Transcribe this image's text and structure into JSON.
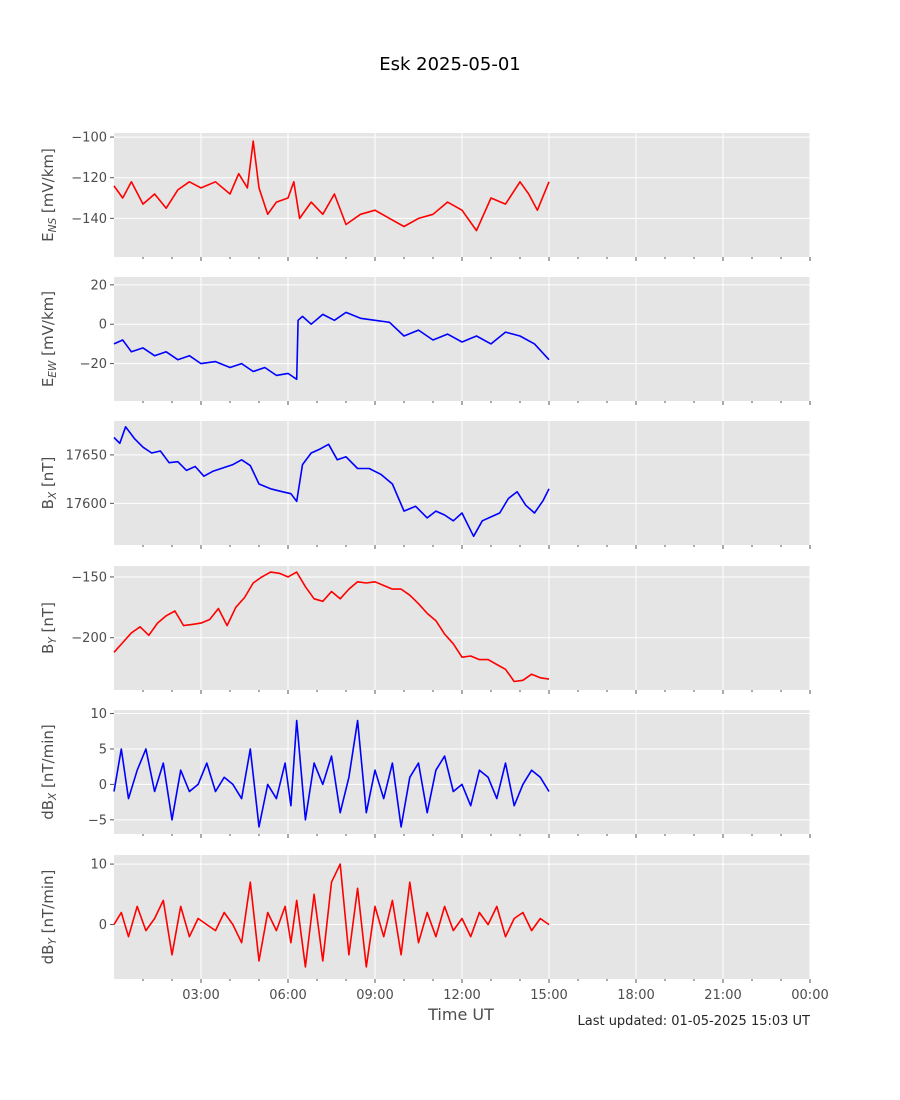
{
  "figure": {
    "title": "Esk 2025-05-01",
    "xlabel": "Time UT",
    "footnote": "Last updated: 01-05-2025 15:03 UT",
    "background": "#e5e5e5",
    "grid_color": "#ffffff",
    "text_color": "#4d4d4d"
  },
  "chart_data": [
    {
      "type": "line",
      "ylabel_main": "E",
      "ylabel_sub": "NS",
      "ylabel_unit": " [mV/km]",
      "color": "#ff0000",
      "x_range_hours": [
        0,
        24
      ],
      "x_ticks": [
        "03:00",
        "06:00",
        "09:00",
        "12:00",
        "15:00",
        "18:00",
        "21:00",
        "00:00"
      ],
      "y_ticks": [
        {
          "v": -100,
          "label": "−100"
        },
        {
          "v": -120,
          "label": "−120"
        },
        {
          "v": -140,
          "label": "−140"
        }
      ],
      "ylim": [
        -159,
        -98
      ],
      "grid": true,
      "series": [
        {
          "x": [
            0,
            0.3,
            0.6,
            1.0,
            1.4,
            1.8,
            2.2,
            2.6,
            3.0,
            3.5,
            4.0,
            4.3,
            4.6,
            4.8,
            5.0,
            5.3,
            5.6,
            6.0,
            6.2,
            6.4,
            6.8,
            7.2,
            7.6,
            8.0,
            8.5,
            9.0,
            9.5,
            10.0,
            10.5,
            11.0,
            11.5,
            12.0,
            12.5,
            13.0,
            13.5,
            14.0,
            14.3,
            14.6,
            15.0
          ],
          "y": [
            -124,
            -130,
            -122,
            -133,
            -128,
            -135,
            -126,
            -122,
            -125,
            -122,
            -128,
            -118,
            -125,
            -102,
            -125,
            -138,
            -132,
            -130,
            -122,
            -140,
            -132,
            -138,
            -128,
            -143,
            -138,
            -136,
            -140,
            -144,
            -140,
            -138,
            -132,
            -136,
            -146,
            -130,
            -133,
            -122,
            -128,
            -136,
            -122
          ]
        }
      ]
    },
    {
      "type": "line",
      "ylabel_main": "E",
      "ylabel_sub": "EW",
      "ylabel_unit": " [mV/km]",
      "color": "#0000ff",
      "x_range_hours": [
        0,
        24
      ],
      "x_ticks": [
        "03:00",
        "06:00",
        "09:00",
        "12:00",
        "15:00",
        "18:00",
        "21:00",
        "00:00"
      ],
      "y_ticks": [
        {
          "v": 20,
          "label": "20"
        },
        {
          "v": 0,
          "label": "0"
        },
        {
          "v": -20,
          "label": "−20"
        }
      ],
      "ylim": [
        -39,
        24
      ],
      "grid": true,
      "series": [
        {
          "x": [
            0,
            0.3,
            0.6,
            1.0,
            1.4,
            1.8,
            2.2,
            2.6,
            3.0,
            3.5,
            4.0,
            4.4,
            4.8,
            5.2,
            5.6,
            6.0,
            6.3,
            6.35,
            6.5,
            6.8,
            7.2,
            7.6,
            8.0,
            8.5,
            9.0,
            9.5,
            10.0,
            10.5,
            11.0,
            11.5,
            12.0,
            12.5,
            13.0,
            13.5,
            14.0,
            14.5,
            15.0
          ],
          "y": [
            -10,
            -8,
            -14,
            -12,
            -16,
            -14,
            -18,
            -16,
            -20,
            -19,
            -22,
            -20,
            -24,
            -22,
            -26,
            -25,
            -28,
            2,
            4,
            0,
            5,
            2,
            6,
            3,
            2,
            1,
            -6,
            -3,
            -8,
            -5,
            -9,
            -6,
            -10,
            -4,
            -6,
            -10,
            -18
          ]
        }
      ]
    },
    {
      "type": "line",
      "ylabel_main": "B",
      "ylabel_sub": "X",
      "ylabel_unit": " [nT]",
      "color": "#0000ff",
      "x_range_hours": [
        0,
        24
      ],
      "x_ticks": [
        "03:00",
        "06:00",
        "09:00",
        "12:00",
        "15:00",
        "18:00",
        "21:00",
        "00:00"
      ],
      "y_ticks": [
        {
          "v": 17650,
          "label": "17650"
        },
        {
          "v": 17600,
          "label": "17600"
        }
      ],
      "ylim": [
        17557,
        17685
      ],
      "grid": true,
      "series": [
        {
          "x": [
            0,
            0.2,
            0.4,
            0.7,
            1.0,
            1.3,
            1.6,
            1.9,
            2.2,
            2.5,
            2.8,
            3.1,
            3.4,
            3.8,
            4.1,
            4.4,
            4.7,
            5.0,
            5.4,
            5.8,
            6.1,
            6.3,
            6.5,
            6.8,
            7.1,
            7.4,
            7.7,
            8.0,
            8.4,
            8.8,
            9.2,
            9.6,
            10.0,
            10.4,
            10.8,
            11.1,
            11.4,
            11.7,
            12.0,
            12.2,
            12.4,
            12.7,
            13.0,
            13.3,
            13.6,
            13.9,
            14.2,
            14.5,
            14.8,
            15.0
          ],
          "y": [
            17668,
            17662,
            17679,
            17667,
            17658,
            17652,
            17654,
            17642,
            17643,
            17634,
            17638,
            17628,
            17633,
            17637,
            17640,
            17645,
            17639,
            17620,
            17615,
            17612,
            17610,
            17602,
            17640,
            17652,
            17656,
            17661,
            17645,
            17648,
            17636,
            17636,
            17630,
            17620,
            17592,
            17597,
            17585,
            17592,
            17588,
            17582,
            17590,
            17578,
            17566,
            17582,
            17586,
            17590,
            17605,
            17612,
            17598,
            17590,
            17603,
            17615
          ]
        }
      ]
    },
    {
      "type": "line",
      "ylabel_main": "B",
      "ylabel_sub": "Y",
      "ylabel_unit": " [nT]",
      "color": "#ff0000",
      "x_range_hours": [
        0,
        24
      ],
      "x_ticks": [
        "03:00",
        "06:00",
        "09:00",
        "12:00",
        "15:00",
        "18:00",
        "21:00",
        "00:00"
      ],
      "y_ticks": [
        {
          "v": -150,
          "label": "−150"
        },
        {
          "v": -200,
          "label": "−200"
        }
      ],
      "ylim": [
        -243,
        -141
      ],
      "grid": true,
      "series": [
        {
          "x": [
            0,
            0.3,
            0.6,
            0.9,
            1.2,
            1.5,
            1.8,
            2.1,
            2.4,
            2.7,
            3.0,
            3.3,
            3.6,
            3.9,
            4.2,
            4.5,
            4.8,
            5.1,
            5.4,
            5.7,
            6.0,
            6.3,
            6.6,
            6.9,
            7.2,
            7.5,
            7.8,
            8.1,
            8.4,
            8.7,
            9.0,
            9.3,
            9.6,
            9.9,
            10.2,
            10.5,
            10.8,
            11.1,
            11.4,
            11.7,
            12.0,
            12.3,
            12.6,
            12.9,
            13.2,
            13.5,
            13.8,
            14.1,
            14.4,
            14.7,
            15.0
          ],
          "y": [
            -212,
            -204,
            -196,
            -191,
            -198,
            -188,
            -182,
            -178,
            -190,
            -189,
            -188,
            -185,
            -176,
            -190,
            -175,
            -167,
            -155,
            -150,
            -146,
            -147,
            -150,
            -146,
            -158,
            -168,
            -170,
            -162,
            -168,
            -160,
            -154,
            -155,
            -154,
            -157,
            -160,
            -160,
            -165,
            -172,
            -180,
            -186,
            -197,
            -205,
            -216,
            -215,
            -218,
            -218,
            -222,
            -226,
            -236,
            -235,
            -230,
            -233,
            -234
          ]
        }
      ]
    },
    {
      "type": "line",
      "ylabel_main": "dB",
      "ylabel_sub": "X",
      "ylabel_unit": " [nT/min]",
      "color": "#0000ff",
      "x_range_hours": [
        0,
        24
      ],
      "x_ticks": [
        "03:00",
        "06:00",
        "09:00",
        "12:00",
        "15:00",
        "18:00",
        "21:00",
        "00:00"
      ],
      "y_ticks": [
        {
          "v": 10,
          "label": "10"
        },
        {
          "v": 5,
          "label": "5"
        },
        {
          "v": 0,
          "label": "0"
        },
        {
          "v": -5,
          "label": "−5"
        }
      ],
      "ylim": [
        -7,
        10.5
      ],
      "grid": true,
      "series": [
        {
          "x": [
            0,
            0.25,
            0.5,
            0.8,
            1.1,
            1.4,
            1.7,
            2.0,
            2.3,
            2.6,
            2.9,
            3.2,
            3.5,
            3.8,
            4.1,
            4.4,
            4.7,
            5.0,
            5.3,
            5.6,
            5.9,
            6.1,
            6.3,
            6.6,
            6.9,
            7.2,
            7.5,
            7.8,
            8.1,
            8.4,
            8.7,
            9.0,
            9.3,
            9.6,
            9.9,
            10.2,
            10.5,
            10.8,
            11.1,
            11.4,
            11.7,
            12.0,
            12.3,
            12.6,
            12.9,
            13.2,
            13.5,
            13.8,
            14.1,
            14.4,
            14.7,
            15.0
          ],
          "y": [
            -1,
            5,
            -2,
            2,
            5,
            -1,
            3,
            -5,
            2,
            -1,
            0,
            3,
            -1,
            1,
            0,
            -2,
            5,
            -6,
            0,
            -2,
            3,
            -3,
            9,
            -5,
            3,
            0,
            4,
            -4,
            1,
            9,
            -4,
            2,
            -2,
            3,
            -6,
            1,
            3,
            -4,
            2,
            4,
            -1,
            0,
            -3,
            2,
            1,
            -2,
            3,
            -3,
            0,
            2,
            1,
            -1
          ]
        }
      ]
    },
    {
      "type": "line",
      "ylabel_main": "dB",
      "ylabel_sub": "Y",
      "ylabel_unit": " [nT/min]",
      "color": "#ff0000",
      "x_range_hours": [
        0,
        24
      ],
      "x_ticks": [
        "03:00",
        "06:00",
        "09:00",
        "12:00",
        "15:00",
        "18:00",
        "21:00",
        "00:00"
      ],
      "y_ticks": [
        {
          "v": 10,
          "label": "10"
        },
        {
          "v": 0,
          "label": "0"
        }
      ],
      "ylim": [
        -9,
        11.5
      ],
      "grid": true,
      "series": [
        {
          "x": [
            0,
            0.25,
            0.5,
            0.8,
            1.1,
            1.4,
            1.7,
            2.0,
            2.3,
            2.6,
            2.9,
            3.2,
            3.5,
            3.8,
            4.1,
            4.4,
            4.7,
            5.0,
            5.3,
            5.6,
            5.9,
            6.1,
            6.3,
            6.6,
            6.9,
            7.2,
            7.5,
            7.8,
            8.1,
            8.4,
            8.7,
            9.0,
            9.3,
            9.6,
            9.9,
            10.2,
            10.5,
            10.8,
            11.1,
            11.4,
            11.7,
            12.0,
            12.3,
            12.6,
            12.9,
            13.2,
            13.5,
            13.8,
            14.1,
            14.4,
            14.7,
            15.0
          ],
          "y": [
            0,
            2,
            -2,
            3,
            -1,
            1,
            4,
            -5,
            3,
            -2,
            1,
            0,
            -1,
            2,
            0,
            -3,
            7,
            -6,
            2,
            -1,
            3,
            -3,
            4,
            -7,
            5,
            -6,
            7,
            10,
            -5,
            6,
            -7,
            3,
            -2,
            4,
            -5,
            7,
            -3,
            2,
            -2,
            3,
            -1,
            1,
            -2,
            2,
            0,
            3,
            -2,
            1,
            2,
            -1,
            1,
            0
          ]
        }
      ]
    }
  ]
}
